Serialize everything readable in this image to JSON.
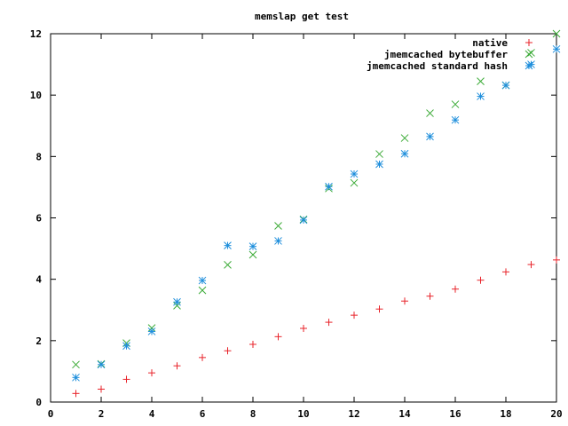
{
  "chart_data": {
    "type": "scatter",
    "title": "memslap get test",
    "xlabel": "",
    "ylabel": "",
    "xlim": [
      0,
      20
    ],
    "ylim": [
      0,
      12
    ],
    "x_ticks": [
      "0",
      "2",
      "4",
      "6",
      "8",
      "10",
      "12",
      "14",
      "16",
      "18",
      "20"
    ],
    "y_ticks": [
      "0",
      "2",
      "4",
      "6",
      "8",
      "10",
      "12"
    ],
    "grid": false,
    "legend_position": "top-right",
    "series": [
      {
        "name": "native",
        "marker": "plus",
        "color": "#e8232a",
        "points": [
          [
            1,
            0.28
          ],
          [
            2,
            0.42
          ],
          [
            3,
            0.74
          ],
          [
            4,
            0.95
          ],
          [
            5,
            1.18
          ],
          [
            6,
            1.45
          ],
          [
            7,
            1.67
          ],
          [
            8,
            1.88
          ],
          [
            9,
            2.13
          ],
          [
            10,
            2.4
          ],
          [
            11,
            2.6
          ],
          [
            12,
            2.83
          ],
          [
            13,
            3.03
          ],
          [
            14,
            3.29
          ],
          [
            15,
            3.45
          ],
          [
            16,
            3.68
          ],
          [
            17,
            3.97
          ],
          [
            18,
            4.24
          ],
          [
            19,
            4.48
          ],
          [
            20,
            4.63
          ]
        ]
      },
      {
        "name": "jmemcached bytebuffer",
        "marker": "cross",
        "color": "#3aaa35",
        "points": [
          [
            1,
            1.22
          ],
          [
            2,
            1.24
          ],
          [
            3,
            1.92
          ],
          [
            4,
            2.41
          ],
          [
            5,
            3.14
          ],
          [
            6,
            3.64
          ],
          [
            7,
            4.47
          ],
          [
            8,
            4.8
          ],
          [
            9,
            5.74
          ],
          [
            10,
            5.95
          ],
          [
            11,
            6.96
          ],
          [
            12,
            7.14
          ],
          [
            13,
            8.08
          ],
          [
            14,
            8.6
          ],
          [
            15,
            9.41
          ],
          [
            16,
            9.7
          ],
          [
            17,
            10.45
          ],
          [
            18,
            10.32
          ],
          [
            19,
            11.38
          ],
          [
            20,
            12.0
          ]
        ]
      },
      {
        "name": "jmemcached standard hash",
        "marker": "star",
        "color": "#1f8fdc",
        "points": [
          [
            1,
            0.8
          ],
          [
            2,
            1.22
          ],
          [
            3,
            1.83
          ],
          [
            4,
            2.3
          ],
          [
            5,
            3.26
          ],
          [
            6,
            3.96
          ],
          [
            7,
            5.1
          ],
          [
            8,
            5.07
          ],
          [
            9,
            5.25
          ],
          [
            10,
            5.93
          ],
          [
            11,
            7.02
          ],
          [
            12,
            7.43
          ],
          [
            13,
            7.75
          ],
          [
            14,
            8.09
          ],
          [
            15,
            8.65
          ],
          [
            16,
            9.19
          ],
          [
            17,
            9.96
          ],
          [
            18,
            10.32
          ],
          [
            19,
            11.0
          ],
          [
            20,
            11.5
          ]
        ]
      }
    ]
  }
}
